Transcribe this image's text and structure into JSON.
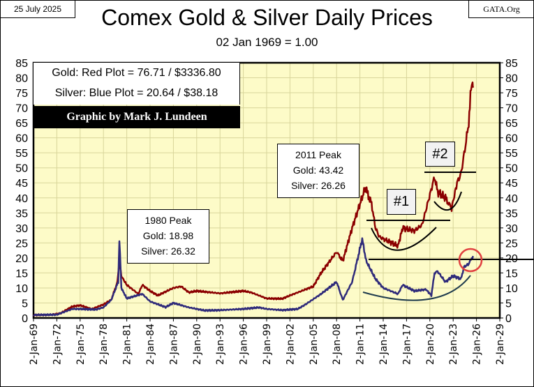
{
  "header": {
    "date": "25 July 2025",
    "source": "GATA.Org",
    "title": "Comex Gold & Silver Daily Prices",
    "subtitle": "02 Jan 1969 = 1.00"
  },
  "legend": {
    "gold": "Gold: Red Plot =  76.71 / $3336.80",
    "silver": "Silver: Blue Plot = 20.64 / $38.18",
    "credit": "Graphic by Mark J. Lundeen"
  },
  "annotations": {
    "peak1980": {
      "title": "1980 Peak",
      "gold": "Gold:  18.98",
      "silver": "Silver: 26.32"
    },
    "peak2011": {
      "title": "2011 Peak",
      "gold": "Gold:  43.42",
      "silver": "Silver: 26.26"
    },
    "label1": "#1",
    "label2": "#2"
  },
  "chart_data": {
    "type": "line",
    "title": "Comex Gold & Silver Daily Prices",
    "subtitle": "02 Jan 1969 = 1.00",
    "xlim": [
      1969,
      2029
    ],
    "ylim": [
      0,
      85
    ],
    "grid": true,
    "xticks": [
      "2-Jan-69",
      "2-Jan-72",
      "2-Jan-75",
      "2-Jan-78",
      "2-Jan-81",
      "2-Jan-84",
      "2-Jan-87",
      "2-Jan-90",
      "2-Jan-93",
      "2-Jan-96",
      "2-Jan-99",
      "2-Jan-02",
      "2-Jan-05",
      "2-Jan-08",
      "2-Jan-11",
      "2-Jan-14",
      "2-Jan-17",
      "2-Jan-20",
      "2-Jan-23",
      "2-Jan-26",
      "2-Jan-29"
    ],
    "yticks": [
      0,
      5,
      10,
      15,
      20,
      25,
      30,
      35,
      40,
      45,
      50,
      55,
      60,
      65,
      70,
      75,
      80,
      85
    ],
    "colors": {
      "gold": "#8b0000",
      "silver": "#2e2a7a",
      "plot_bg": "#fdfbc8",
      "grid": "#d8d59a"
    },
    "series": [
      {
        "name": "Gold",
        "x": [
          1969,
          1971,
          1972.5,
          1974,
          1975,
          1976.5,
          1978,
          1979,
          1979.8,
          1980.05,
          1980.3,
          1981,
          1982.5,
          1983,
          1984,
          1985,
          1987,
          1988,
          1989,
          1990,
          1993,
          1996,
          1997,
          1999,
          2001,
          2002,
          2005,
          2006,
          2008,
          2008.8,
          2010,
          2011.7,
          2012.5,
          2013,
          2013.5,
          2015.9,
          2016.5,
          2018,
          2019,
          2020.6,
          2021,
          2022,
          2022.8,
          2023.5,
          2024,
          2024.5,
          2025,
          2025.3,
          2025.5,
          2025.55
        ],
        "values": [
          1.0,
          1.0,
          1.6,
          3.8,
          4.2,
          3.0,
          4.5,
          6,
          12,
          18.98,
          14,
          11,
          8,
          11,
          9,
          7.5,
          10,
          10.5,
          8.5,
          9,
          8.2,
          9,
          8.5,
          6.5,
          6.4,
          7.5,
          10.5,
          15,
          22,
          19,
          30,
          43.42,
          38,
          30,
          27,
          24,
          30,
          29,
          31,
          47,
          42,
          40,
          36.5,
          45,
          48,
          56,
          65,
          76,
          78.5,
          76.71
        ]
      },
      {
        "name": "Silver",
        "x": [
          1969,
          1972,
          1974,
          1975,
          1977,
          1978,
          1979,
          1979.9,
          1980.05,
          1980.3,
          1981,
          1983,
          1984,
          1986,
          1987,
          1989,
          1991,
          1993,
          1996,
          1998,
          1999,
          2001,
          2003,
          2004,
          2006,
          2008,
          2008.8,
          2010,
          2011.3,
          2011.8,
          2013,
          2014,
          2015.9,
          2016.5,
          2018,
          2019.5,
          2020.2,
          2020.6,
          2021,
          2022,
          2023,
          2024,
          2024.4,
          2025,
          2025.55
        ],
        "values": [
          1.0,
          1.1,
          3,
          3.0,
          2.8,
          3.5,
          6,
          12,
          26.32,
          10,
          6.5,
          8,
          5.5,
          3.6,
          5,
          3.5,
          2.5,
          2.6,
          3,
          3.5,
          3,
          2.6,
          3,
          4.5,
          8,
          12,
          6,
          12,
          26.26,
          19,
          13,
          10,
          8,
          11,
          9,
          9.5,
          7.5,
          15,
          15.5,
          12,
          14,
          13,
          17,
          18,
          20.64
        ]
      }
    ]
  }
}
